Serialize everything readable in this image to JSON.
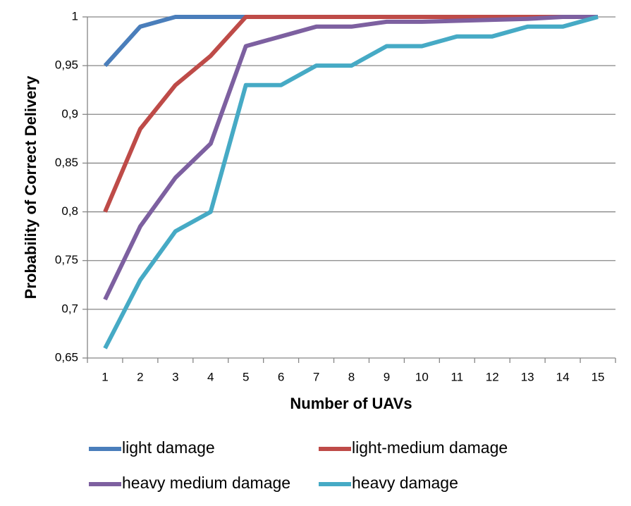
{
  "chart_data": {
    "type": "line",
    "title": "",
    "xlabel": "Number of UAVs",
    "ylabel": "Probability of Correct Delivery",
    "x": [
      1,
      2,
      3,
      4,
      5,
      6,
      7,
      8,
      9,
      10,
      11,
      12,
      13,
      14,
      15
    ],
    "x_tick_labels": [
      "1",
      "2",
      "3",
      "4",
      "5",
      "6",
      "7",
      "8",
      "9",
      "10",
      "11",
      "12",
      "13",
      "14",
      "15"
    ],
    "y_tick_labels": [
      "0,65",
      "0,7",
      "0,75",
      "0,8",
      "0,85",
      "0,9",
      "0,95",
      "1"
    ],
    "ylim": [
      0.65,
      1
    ],
    "grid": "horizontal",
    "legend_position": "bottom",
    "series": [
      {
        "name": "light damage",
        "color": "#4A7EBB",
        "values": [
          0.95,
          0.99,
          1,
          1,
          1,
          1,
          1,
          1,
          1,
          1,
          1,
          1,
          1,
          1,
          1
        ]
      },
      {
        "name": "light-medium damage",
        "color": "#BE4B48",
        "values": [
          0.8,
          0.885,
          0.93,
          0.96,
          1,
          1,
          1,
          1,
          1,
          1,
          1,
          1,
          1,
          1,
          1
        ]
      },
      {
        "name": "heavy medium damage",
        "color": "#7D60A0",
        "values": [
          0.71,
          0.785,
          0.835,
          0.87,
          0.97,
          0.98,
          0.99,
          0.99,
          0.995,
          0.995,
          0.996,
          0.997,
          0.998,
          1,
          1
        ]
      },
      {
        "name": "heavy damage",
        "color": "#46AAC5",
        "values": [
          0.66,
          0.73,
          0.78,
          0.8,
          0.93,
          0.93,
          0.95,
          0.95,
          0.97,
          0.97,
          0.98,
          0.98,
          0.99,
          0.99,
          1
        ]
      }
    ]
  }
}
